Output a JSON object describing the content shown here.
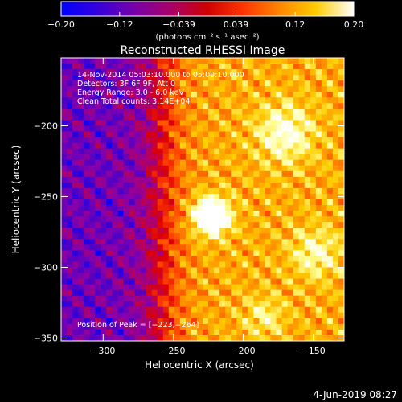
{
  "chart_data": {
    "type": "heatmap",
    "title": "Reconstructed RHESSI Image",
    "xlabel": "Heliocentric X (arcsec)",
    "ylabel": "Heliocentric Y (arcsec)",
    "xlim": [
      -330,
      -128
    ],
    "ylim": [
      -352,
      -152
    ],
    "xticks": [
      -300,
      -250,
      -200,
      -150
    ],
    "yticks": [
      -200,
      -250,
      -300,
      -350
    ],
    "xtick_labels": [
      "−300",
      "−250",
      "−200",
      "−150"
    ],
    "ytick_labels": [
      "−200",
      "−250",
      "−300",
      "−350"
    ],
    "annotations": [
      "14-Nov-2014 05:03:10.000 to 05:09:10.000",
      "Detectors: 3F 6F 9F, Att 0",
      "Energy Range: 3.0 - 6.0 keV",
      "Clean     Total counts: 3.14E+04"
    ],
    "peak_label": "Position of Peak = [−223,−264]",
    "peak": [
      -223,
      -264
    ],
    "colorbar": {
      "range": [
        -0.2,
        0.2
      ],
      "tick_values": [
        -0.2,
        -0.12,
        -0.039,
        0.039,
        0.12,
        0.2
      ],
      "tick_labels": [
        "−0.20",
        "−0.12",
        "−0.039",
        "0.039",
        "0.12",
        "0.20"
      ],
      "units": "(photons cm⁻² s⁻¹ asec⁻²)"
    },
    "colormap": [
      "#0000ff",
      "#4400cc",
      "#8800aa",
      "#bb0055",
      "#dd0000",
      "#ff4400",
      "#ff8800",
      "#ffcc00",
      "#ffff99",
      "#ffffff"
    ]
  },
  "footer": {
    "date": "4-Jun-2019 08:27"
  }
}
